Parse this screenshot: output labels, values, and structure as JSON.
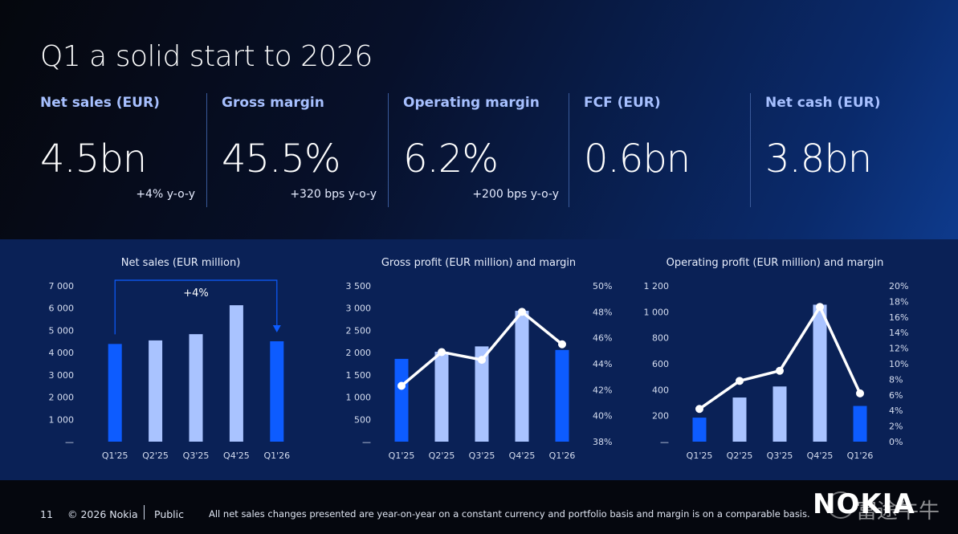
{
  "page": {
    "title": "Q1 a solid start to 2026"
  },
  "kpis": [
    {
      "label": "Net sales (EUR)",
      "value": "4.5bn",
      "change": "+4% y-o-y"
    },
    {
      "label": "Gross margin",
      "value": "45.5%",
      "change": "+320 bps y-o-y"
    },
    {
      "label": "Operating margin",
      "value": "6.2%",
      "change": "+200 bps y-o-y"
    },
    {
      "label": "FCF (EUR)",
      "value": "0.6bn",
      "change": ""
    },
    {
      "label": "Net cash (EUR)",
      "value": "3.8bn",
      "change": ""
    }
  ],
  "colors": {
    "highlight_bar": "#0d5cff",
    "light_bar": "#a9c3ff",
    "line": "#ffffff",
    "axis_text": "#d6def0"
  },
  "chart_data": [
    {
      "type": "bar",
      "title": "Net sales (EUR million)",
      "categories": [
        "Q1'25",
        "Q2'25",
        "Q3'25",
        "Q4'25",
        "Q1'26"
      ],
      "series": [
        {
          "values": [
            4390,
            4550,
            4830,
            6130,
            4510
          ]
        }
      ],
      "highlight": [
        "Q1'25",
        "Q1'26"
      ],
      "ylim": [
        0,
        7000
      ],
      "yticks": [
        "—",
        "1 000",
        "2 000",
        "3 000",
        "4 000",
        "5 000",
        "6 000",
        "7 000"
      ],
      "annotation": {
        "text": "+4%",
        "from": "Q1'25",
        "to": "Q1'26"
      },
      "grid": false
    },
    {
      "type": "bar+line",
      "title": "Gross profit (EUR million) and margin",
      "categories": [
        "Q1'25",
        "Q2'25",
        "Q3'25",
        "Q4'25",
        "Q1'26"
      ],
      "series": [
        {
          "type": "bar",
          "axis": "left",
          "values": [
            1860,
            2020,
            2140,
            2940,
            2060
          ]
        },
        {
          "type": "line",
          "axis": "right",
          "values": [
            42.3,
            44.9,
            44.3,
            48.0,
            45.5
          ]
        }
      ],
      "highlight": [
        "Q1'25",
        "Q1'26"
      ],
      "ylim": [
        0,
        3500
      ],
      "yticks": [
        "—",
        "500",
        "1 000",
        "1 500",
        "2 000",
        "2 500",
        "3 000",
        "3 500"
      ],
      "y2lim": [
        38,
        50
      ],
      "y2ticks": [
        "38%",
        "40%",
        "42%",
        "44%",
        "46%",
        "48%",
        "50%"
      ],
      "grid": false
    },
    {
      "type": "bar+line",
      "title": "Operating profit (EUR million) and margin",
      "categories": [
        "Q1'25",
        "Q2'25",
        "Q3'25",
        "Q4'25",
        "Q1'26"
      ],
      "series": [
        {
          "type": "bar",
          "axis": "left",
          "values": [
            185,
            340,
            425,
            1055,
            275
          ]
        },
        {
          "type": "line",
          "axis": "right",
          "values": [
            4.2,
            7.8,
            9.1,
            17.3,
            6.2
          ]
        }
      ],
      "highlight": [
        "Q1'25",
        "Q1'26"
      ],
      "ylim": [
        0,
        1200
      ],
      "yticks": [
        "—",
        "200",
        "400",
        "600",
        "800",
        "1 000",
        "1 200"
      ],
      "y2lim": [
        0,
        20
      ],
      "y2ticks": [
        "0%",
        "2%",
        "4%",
        "6%",
        "8%",
        "10%",
        "12%",
        "14%",
        "16%",
        "18%",
        "20%"
      ],
      "grid": false
    }
  ],
  "footer": {
    "page_number": "11",
    "copyright": "© 2026 Nokia",
    "classification": "Public",
    "note": "All net sales changes presented are year-on-year on a constant currency and portfolio basis and margin is on a comparable basis."
  },
  "logo": {
    "text": "NOKIA"
  },
  "watermark": {
    "text": "富途牛牛"
  }
}
